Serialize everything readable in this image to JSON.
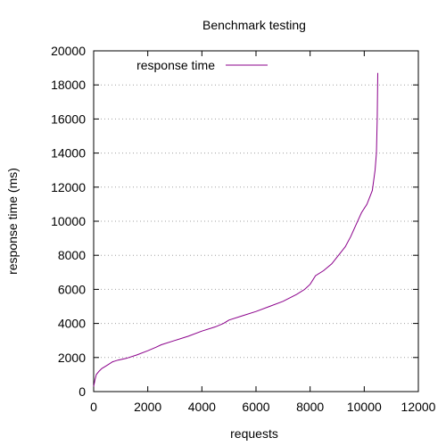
{
  "chart_data": {
    "type": "line",
    "title": "Benchmark testing",
    "xlabel": "requests",
    "ylabel": "response time (ms)",
    "xlim": [
      0,
      12000
    ],
    "ylim": [
      0,
      20000
    ],
    "xticks": [
      0,
      2000,
      4000,
      6000,
      8000,
      10000,
      12000
    ],
    "yticks": [
      0,
      2000,
      4000,
      6000,
      8000,
      10000,
      12000,
      14000,
      16000,
      18000,
      20000
    ],
    "grid": "horizontal dotted",
    "legend_position": "top-left",
    "series": [
      {
        "name": "response time",
        "color": "#8b008b",
        "x": [
          0,
          50,
          100,
          200,
          300,
          500,
          700,
          900,
          1200,
          1600,
          2000,
          2300,
          2500,
          3000,
          3500,
          4000,
          4500,
          4800,
          5000,
          5500,
          6000,
          6500,
          7000,
          7500,
          7800,
          8000,
          8200,
          8500,
          8800,
          9000,
          9300,
          9500,
          9700,
          9900,
          10100,
          10300,
          10400,
          10450,
          10480,
          10500
        ],
        "y": [
          300,
          700,
          1000,
          1200,
          1350,
          1550,
          1750,
          1850,
          1950,
          2150,
          2400,
          2600,
          2750,
          3000,
          3250,
          3550,
          3800,
          4000,
          4200,
          4450,
          4700,
          5000,
          5300,
          5700,
          6000,
          6300,
          6800,
          7100,
          7500,
          7900,
          8500,
          9100,
          9800,
          10500,
          11000,
          11800,
          13000,
          14000,
          16000,
          18700
        ]
      }
    ]
  }
}
